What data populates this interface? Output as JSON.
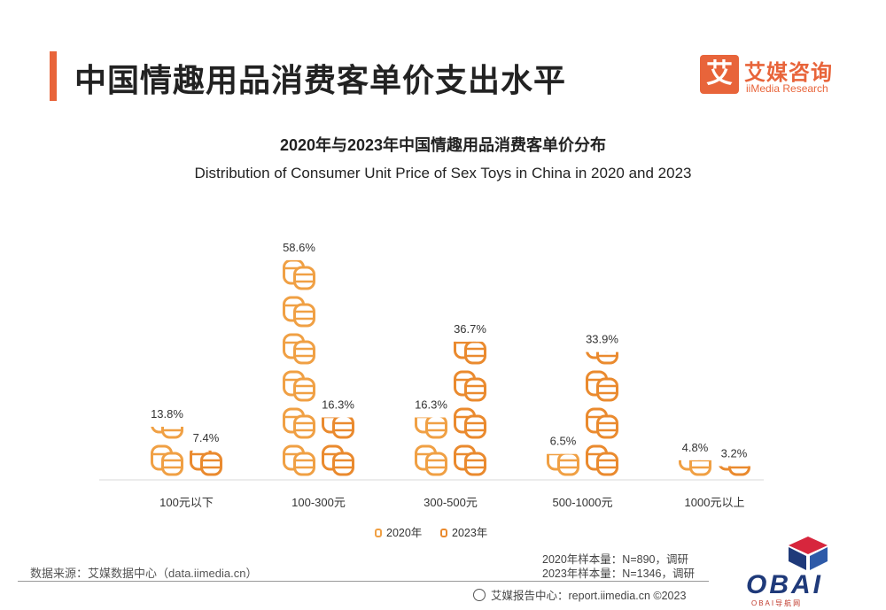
{
  "header": {
    "title": "中国情趣用品消费客单价支出水平"
  },
  "logo": {
    "cn": "艾媒咨询",
    "en": "iiMedia Research",
    "mark": "艾"
  },
  "chart_data": {
    "type": "bar",
    "title": "2020年与2023年中国情趣用品消费客单价分布",
    "subtitle": "Distribution of Consumer Unit Price of Sex Toys in China in 2020 and 2023",
    "categories": [
      "100元以下",
      "100-300元",
      "300-500元",
      "500-1000元",
      "1000元以上"
    ],
    "series": [
      {
        "name": "2020年",
        "values": [
          13.8,
          58.6,
          16.3,
          6.5,
          4.8
        ],
        "labels": [
          "13.8%",
          "58.6%",
          "16.3%",
          "6.5%",
          "4.8%"
        ]
      },
      {
        "name": "2023年",
        "values": [
          7.4,
          16.3,
          36.7,
          33.9,
          3.2
        ],
        "labels": [
          "7.4%",
          "16.3%",
          "36.7%",
          "33.9%",
          "3.2%"
        ]
      }
    ],
    "unit": "%",
    "ylim": [
      0,
      60
    ],
    "legend": "bottom",
    "grid": false,
    "colors": {
      "2020年": "#f0a044",
      "2023年": "#ea8a2e"
    }
  },
  "footer": {
    "source": "数据来源：艾媒数据中心（data.iimedia.cn）",
    "sample_2020": "2020年样本量：N=890，调研",
    "sample_2023": "2023年样本量：N=1346，调研",
    "report": "艾媒报告中心：report.iimedia.cn ©2023"
  },
  "watermark": {
    "text": "OBAI",
    "sub": "OBAI导航网"
  }
}
